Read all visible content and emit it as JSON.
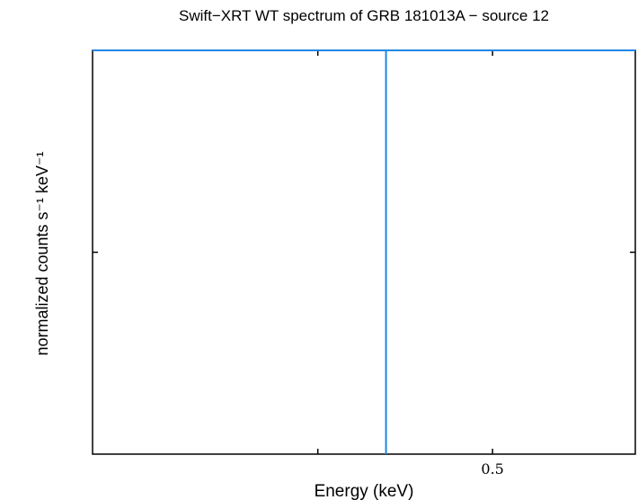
{
  "chart_data": {
    "type": "line",
    "title": "Swift−XRT WT spectrum of GRB 181013A − source 12",
    "xlabel": "Energy (keV)",
    "ylabel": "normalized counts s⁻¹ keV⁻¹",
    "x_scale": "log",
    "xlim": [
      0.3,
      0.6
    ],
    "x_ticks": [
      {
        "value": 0.4,
        "label": ""
      },
      {
        "value": 0.5,
        "label": "0.5"
      }
    ],
    "y_ticks": [
      {
        "value": 0.5,
        "label": ""
      }
    ],
    "ylim": [
      0,
      1
    ],
    "grid": false,
    "series": [
      {
        "color": "#1e88e5",
        "points": [
          {
            "x": 0.3,
            "y": 1.0
          },
          {
            "x": 0.6,
            "y": 1.0
          }
        ]
      },
      {
        "color": "#1e88e5",
        "points": [
          {
            "x": 0.4364,
            "y": 0.0
          },
          {
            "x": 0.4364,
            "y": 1.0
          }
        ]
      }
    ]
  }
}
